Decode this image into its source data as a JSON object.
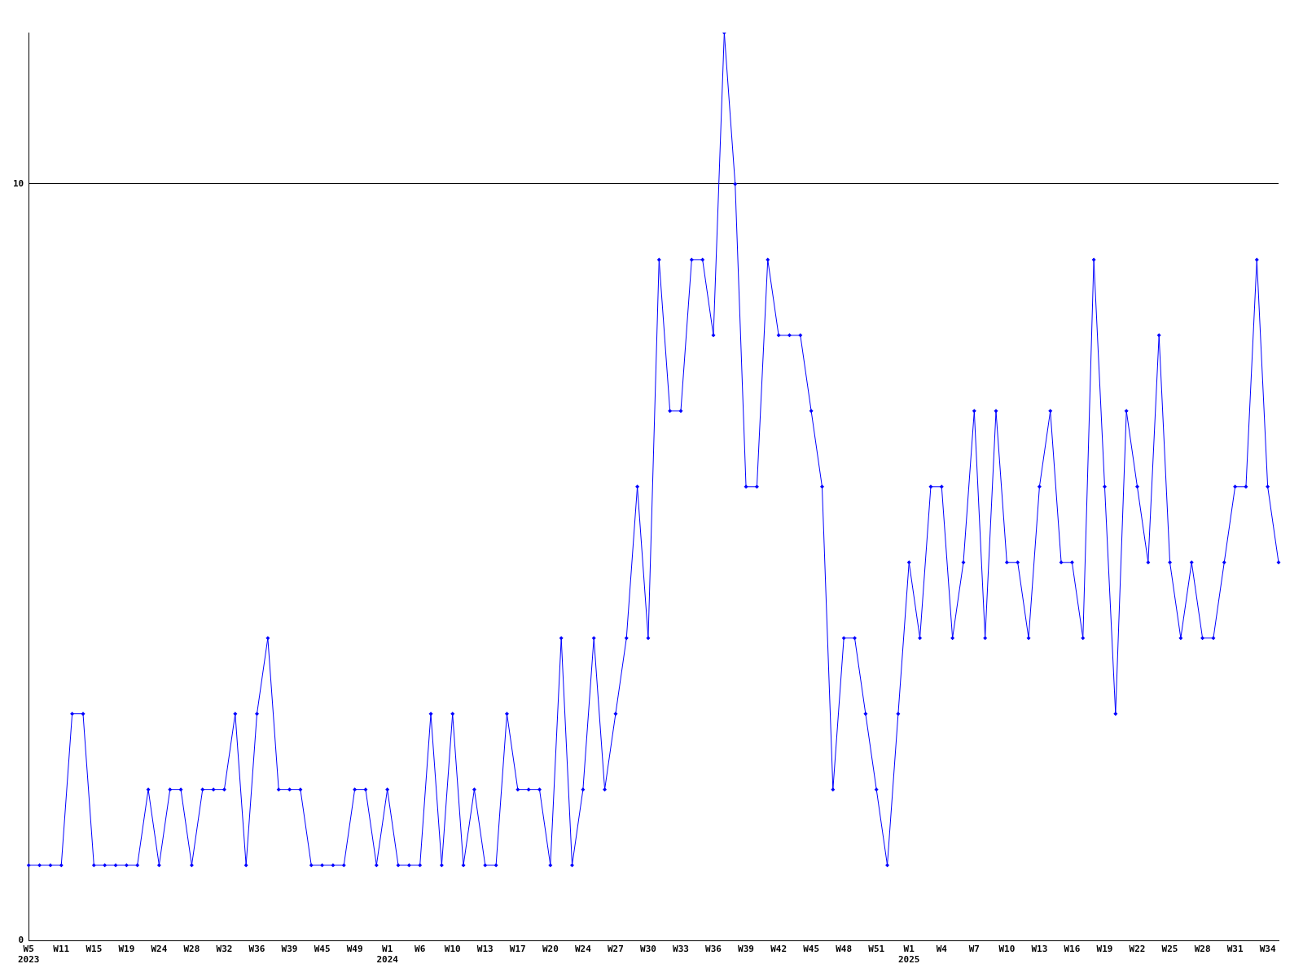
{
  "chart_data": {
    "type": "line",
    "categories": [
      "W5\n2023",
      null,
      null,
      "W11",
      null,
      null,
      "W15",
      null,
      null,
      "W19",
      null,
      null,
      "W24",
      null,
      null,
      "W28",
      null,
      null,
      "W32",
      null,
      null,
      "W36",
      null,
      null,
      "W39",
      null,
      null,
      "W45",
      null,
      null,
      "W49",
      null,
      null,
      "W1\n2024",
      null,
      null,
      "W6",
      null,
      null,
      "W10",
      null,
      null,
      "W13",
      null,
      null,
      "W17",
      null,
      null,
      "W20",
      null,
      null,
      "W24",
      null,
      null,
      "W27",
      null,
      null,
      "W30",
      null,
      null,
      "W33",
      null,
      null,
      "W36",
      null,
      null,
      "W39",
      null,
      null,
      "W42",
      null,
      null,
      "W45",
      null,
      null,
      "W48",
      null,
      null,
      "W51",
      null,
      null,
      "W1\n2025",
      null,
      null,
      "W4",
      null,
      null,
      "W7",
      null,
      null,
      "W10",
      null,
      null,
      "W13",
      null,
      null,
      "W16",
      null,
      null,
      "W19",
      null,
      null,
      "W22",
      null,
      null,
      "W25",
      null,
      null,
      "W28",
      null,
      null,
      "W31",
      null,
      null,
      "W34",
      null
    ],
    "series": [
      {
        "color": "#0000ff",
        "values": [
          1,
          1,
          1,
          1,
          3,
          3,
          1,
          1,
          1,
          1,
          1,
          2,
          1,
          2,
          2,
          1,
          2,
          2,
          2,
          3,
          1,
          3,
          4,
          2,
          2,
          2,
          1,
          1,
          1,
          1,
          2,
          2,
          1,
          2,
          1,
          1,
          1,
          3,
          1,
          3,
          1,
          2,
          1,
          1,
          3,
          2,
          2,
          2,
          1,
          4,
          1,
          2,
          4,
          2,
          3,
          4,
          6,
          4,
          9,
          7,
          7,
          9,
          9,
          8,
          12,
          10,
          6,
          6,
          9,
          8,
          8,
          8,
          7,
          6,
          2,
          4,
          4,
          3,
          2,
          1,
          3,
          5,
          4,
          6,
          6,
          4,
          5,
          7,
          4,
          7,
          5,
          5,
          4,
          6,
          7,
          5,
          5,
          4,
          9,
          6,
          3,
          7,
          6,
          5,
          8,
          5,
          4,
          5,
          4,
          4,
          5,
          6,
          6,
          9,
          6,
          5
        ]
      }
    ],
    "ylim": [
      0,
      12
    ],
    "yticks": [
      0,
      10
    ],
    "grid": "y",
    "legend": false,
    "marker": "diamond",
    "line_style": "solid"
  }
}
